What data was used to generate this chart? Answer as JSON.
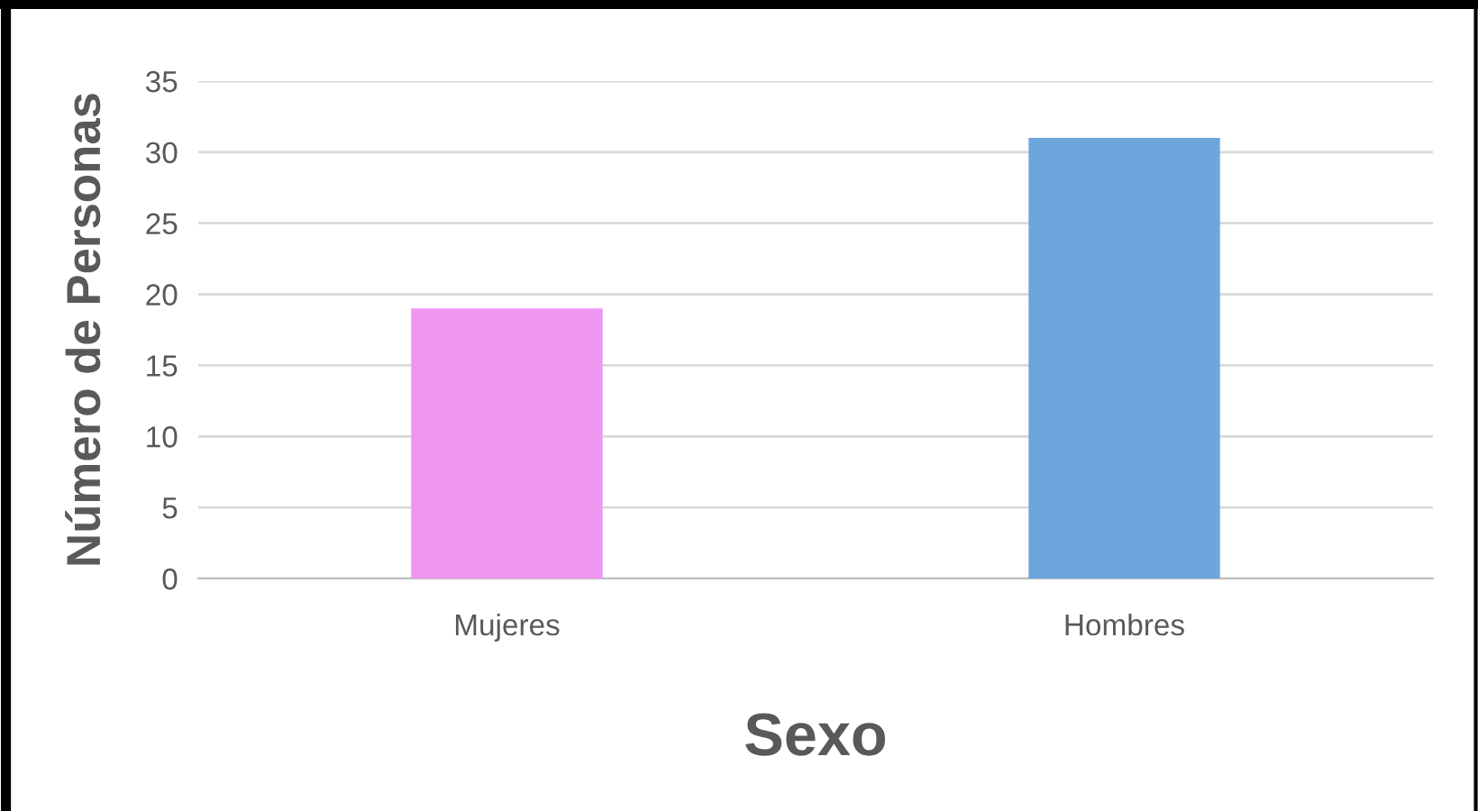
{
  "chart_data": {
    "type": "bar",
    "xlabel": "Sexo",
    "ylabel": "Número de Personas",
    "categories": [
      "Mujeres",
      "Hombres"
    ],
    "values": [
      19,
      31
    ],
    "colors": [
      "#ee96f0",
      "#6ca6dc"
    ],
    "ylim": [
      0,
      35
    ],
    "yticks": [
      0,
      5,
      10,
      15,
      20,
      25,
      30,
      35
    ],
    "grid": "y",
    "legend": false
  }
}
